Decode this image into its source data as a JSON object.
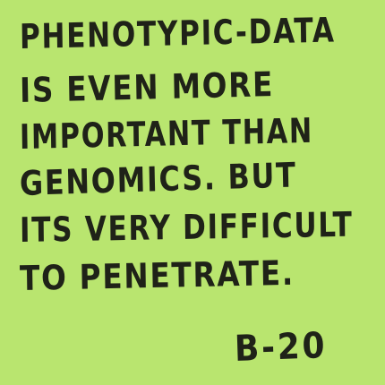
{
  "note": {
    "lines": [
      "PHENOTYPIC-DATA",
      "IS EVEN MORE",
      "IMPORTANT THAN",
      "GENOMICS. BUT",
      "ITS VERY DIFFICULT",
      "TO PENETRATE."
    ],
    "signature": "B-20",
    "background_color": "#b9e56f",
    "ink_color": "#1f2218"
  }
}
